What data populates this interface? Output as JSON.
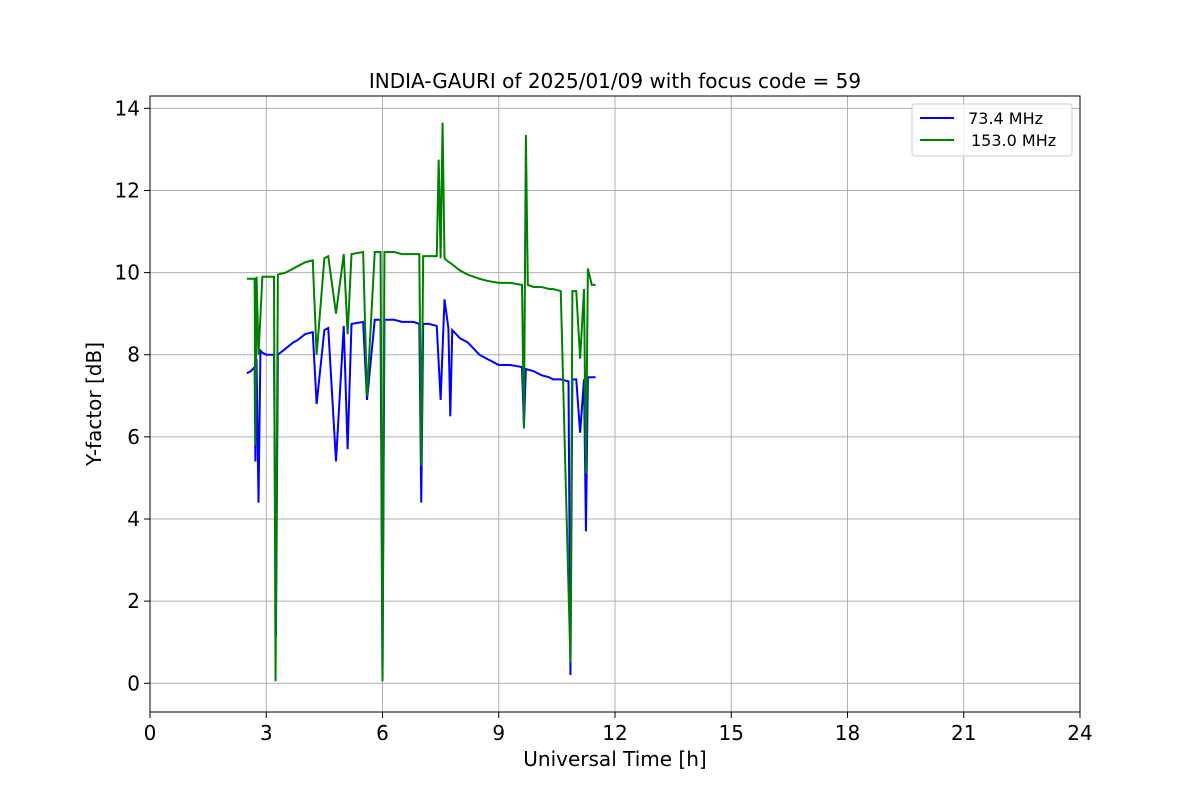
{
  "chart_data": {
    "type": "line",
    "title": "INDIA-GAURI of 2025/01/09 with focus code = 59",
    "xlabel": "Universal Time [h]",
    "ylabel": "Y-factor [dB]",
    "xlim": [
      0,
      24
    ],
    "ylim": [
      -0.7,
      14.3
    ],
    "xticks": [
      0,
      3,
      6,
      9,
      12,
      15,
      18,
      21,
      24
    ],
    "yticks": [
      0,
      2,
      4,
      6,
      8,
      10,
      12,
      14
    ],
    "grid": true,
    "legend_position": "top-right",
    "series": [
      {
        "name": " 73.4 MHz",
        "color": "#0000ff",
        "x": [
          2.5,
          2.6,
          2.7,
          2.72,
          2.75,
          2.8,
          2.85,
          2.9,
          3.0,
          3.2,
          3.25,
          3.3,
          3.5,
          3.7,
          3.8,
          4.0,
          4.2,
          4.3,
          4.5,
          4.6,
          4.8,
          5.0,
          5.1,
          5.2,
          5.5,
          5.6,
          5.8,
          5.95,
          6.0,
          6.05,
          6.3,
          6.5,
          6.8,
          6.95,
          7.0,
          7.05,
          7.2,
          7.4,
          7.5,
          7.6,
          7.7,
          7.75,
          7.8,
          8.0,
          8.2,
          8.4,
          8.5,
          8.7,
          8.9,
          9.0,
          9.3,
          9.6,
          9.65,
          9.7,
          9.9,
          10.1,
          10.3,
          10.4,
          10.6,
          10.8,
          10.85,
          10.9,
          11.0,
          11.1,
          11.2,
          11.25,
          11.3,
          11.4,
          11.5
        ],
        "y": [
          7.55,
          7.6,
          7.7,
          5.4,
          7.9,
          4.4,
          8.1,
          8.05,
          8.0,
          8.0,
          1.15,
          8.0,
          8.15,
          8.3,
          8.35,
          8.5,
          8.55,
          6.8,
          8.6,
          8.65,
          5.4,
          8.7,
          5.7,
          8.75,
          8.8,
          6.9,
          8.85,
          8.85,
          0.05,
          8.85,
          8.85,
          8.8,
          8.8,
          8.75,
          4.4,
          8.75,
          8.75,
          8.7,
          6.9,
          9.35,
          8.65,
          6.5,
          8.6,
          8.4,
          8.3,
          8.1,
          8.0,
          7.9,
          7.8,
          7.75,
          7.75,
          7.7,
          6.25,
          7.65,
          7.6,
          7.5,
          7.45,
          7.4,
          7.4,
          7.35,
          0.2,
          7.4,
          7.4,
          6.1,
          7.4,
          3.7,
          7.45,
          7.45,
          7.45
        ]
      },
      {
        "name": "153.0 MHz",
        "color": "#008000",
        "x": [
          2.5,
          2.6,
          2.7,
          2.72,
          2.75,
          2.8,
          2.9,
          3.0,
          3.2,
          3.24,
          3.3,
          3.5,
          3.7,
          3.8,
          4.0,
          4.2,
          4.3,
          4.5,
          4.6,
          4.8,
          5.0,
          5.1,
          5.2,
          5.5,
          5.6,
          5.8,
          5.95,
          6.0,
          6.05,
          6.3,
          6.5,
          6.8,
          6.95,
          7.0,
          7.05,
          7.2,
          7.4,
          7.45,
          7.5,
          7.55,
          7.6,
          7.65,
          7.8,
          8.0,
          8.2,
          8.5,
          8.7,
          9.0,
          9.3,
          9.6,
          9.65,
          9.7,
          9.75,
          9.9,
          10.1,
          10.3,
          10.4,
          10.6,
          10.85,
          10.9,
          11.0,
          11.1,
          11.2,
          11.25,
          11.3,
          11.4,
          11.5
        ],
        "y": [
          9.85,
          9.85,
          9.85,
          5.8,
          9.9,
          8.0,
          9.9,
          9.9,
          9.9,
          0.05,
          9.95,
          10.0,
          10.1,
          10.15,
          10.25,
          10.3,
          8.0,
          10.35,
          10.4,
          9.0,
          10.45,
          8.5,
          10.45,
          10.5,
          7.0,
          10.5,
          10.5,
          0.05,
          10.5,
          10.5,
          10.45,
          10.45,
          10.45,
          5.3,
          10.4,
          10.4,
          10.4,
          12.75,
          10.35,
          13.65,
          10.35,
          10.3,
          10.2,
          10.05,
          9.95,
          9.85,
          9.8,
          9.75,
          9.75,
          9.7,
          6.2,
          13.35,
          9.7,
          9.65,
          9.65,
          9.6,
          9.6,
          9.55,
          0.5,
          9.55,
          9.55,
          7.9,
          9.6,
          5.1,
          10.1,
          9.7,
          9.7
        ]
      }
    ]
  }
}
